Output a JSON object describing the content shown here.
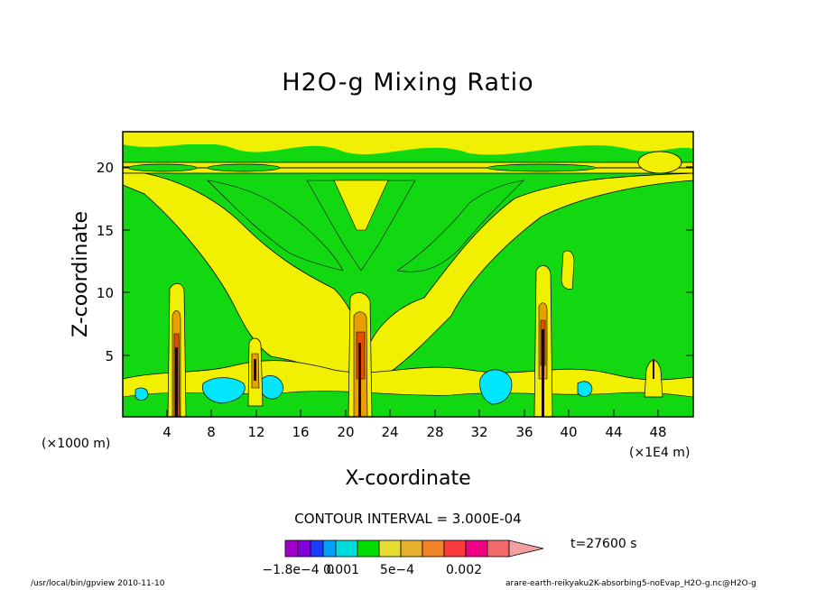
{
  "chart_data": {
    "type": "heatmap",
    "title": "H2O-g Mixing Ratio",
    "xlabel": "X-coordinate",
    "ylabel": "Z-coordinate",
    "x_unit_label": "(×1E4 m)",
    "y_unit_label": "(×1000 m)",
    "x_ticks": [
      "4",
      "8",
      "12",
      "16",
      "20",
      "24",
      "28",
      "32",
      "36",
      "40",
      "44",
      "48"
    ],
    "y_ticks": [
      "5",
      "10",
      "15",
      "20"
    ],
    "xlim": [
      0,
      51
    ],
    "ylim": [
      0,
      22.8
    ],
    "contour_interval": "CONTOUR INTERVAL = 3.000E-04",
    "time_label": "t=27600 s",
    "colorbar_labels": [
      "−1.8e−4",
      "0",
      "0.001",
      "5e−4",
      "0.002"
    ],
    "colorbar_colors": [
      "#a000c8",
      "#8200dc",
      "#1e3cff",
      "#00a0ff",
      "#00dcdc",
      "#00dc00",
      "#e6dc32",
      "#e6af2d",
      "#f08228",
      "#fa3c3c",
      "#f00082",
      "#f46b6b",
      "#f4a0a0"
    ],
    "fill_colors": {
      "background": "#e6ff00",
      "green": "#12d812",
      "yellow": "#f0f000",
      "cyan": "#00e6ff",
      "orange": "#e6a000",
      "red": "#e05000",
      "dark": "#280000"
    }
  },
  "footer": {
    "left": "/usr/local/bin/gpview  2010-11-10",
    "right": "arare-earth-reikyaku2K-absorbing5-noEvap_H2O-g.nc@H2O-g"
  }
}
